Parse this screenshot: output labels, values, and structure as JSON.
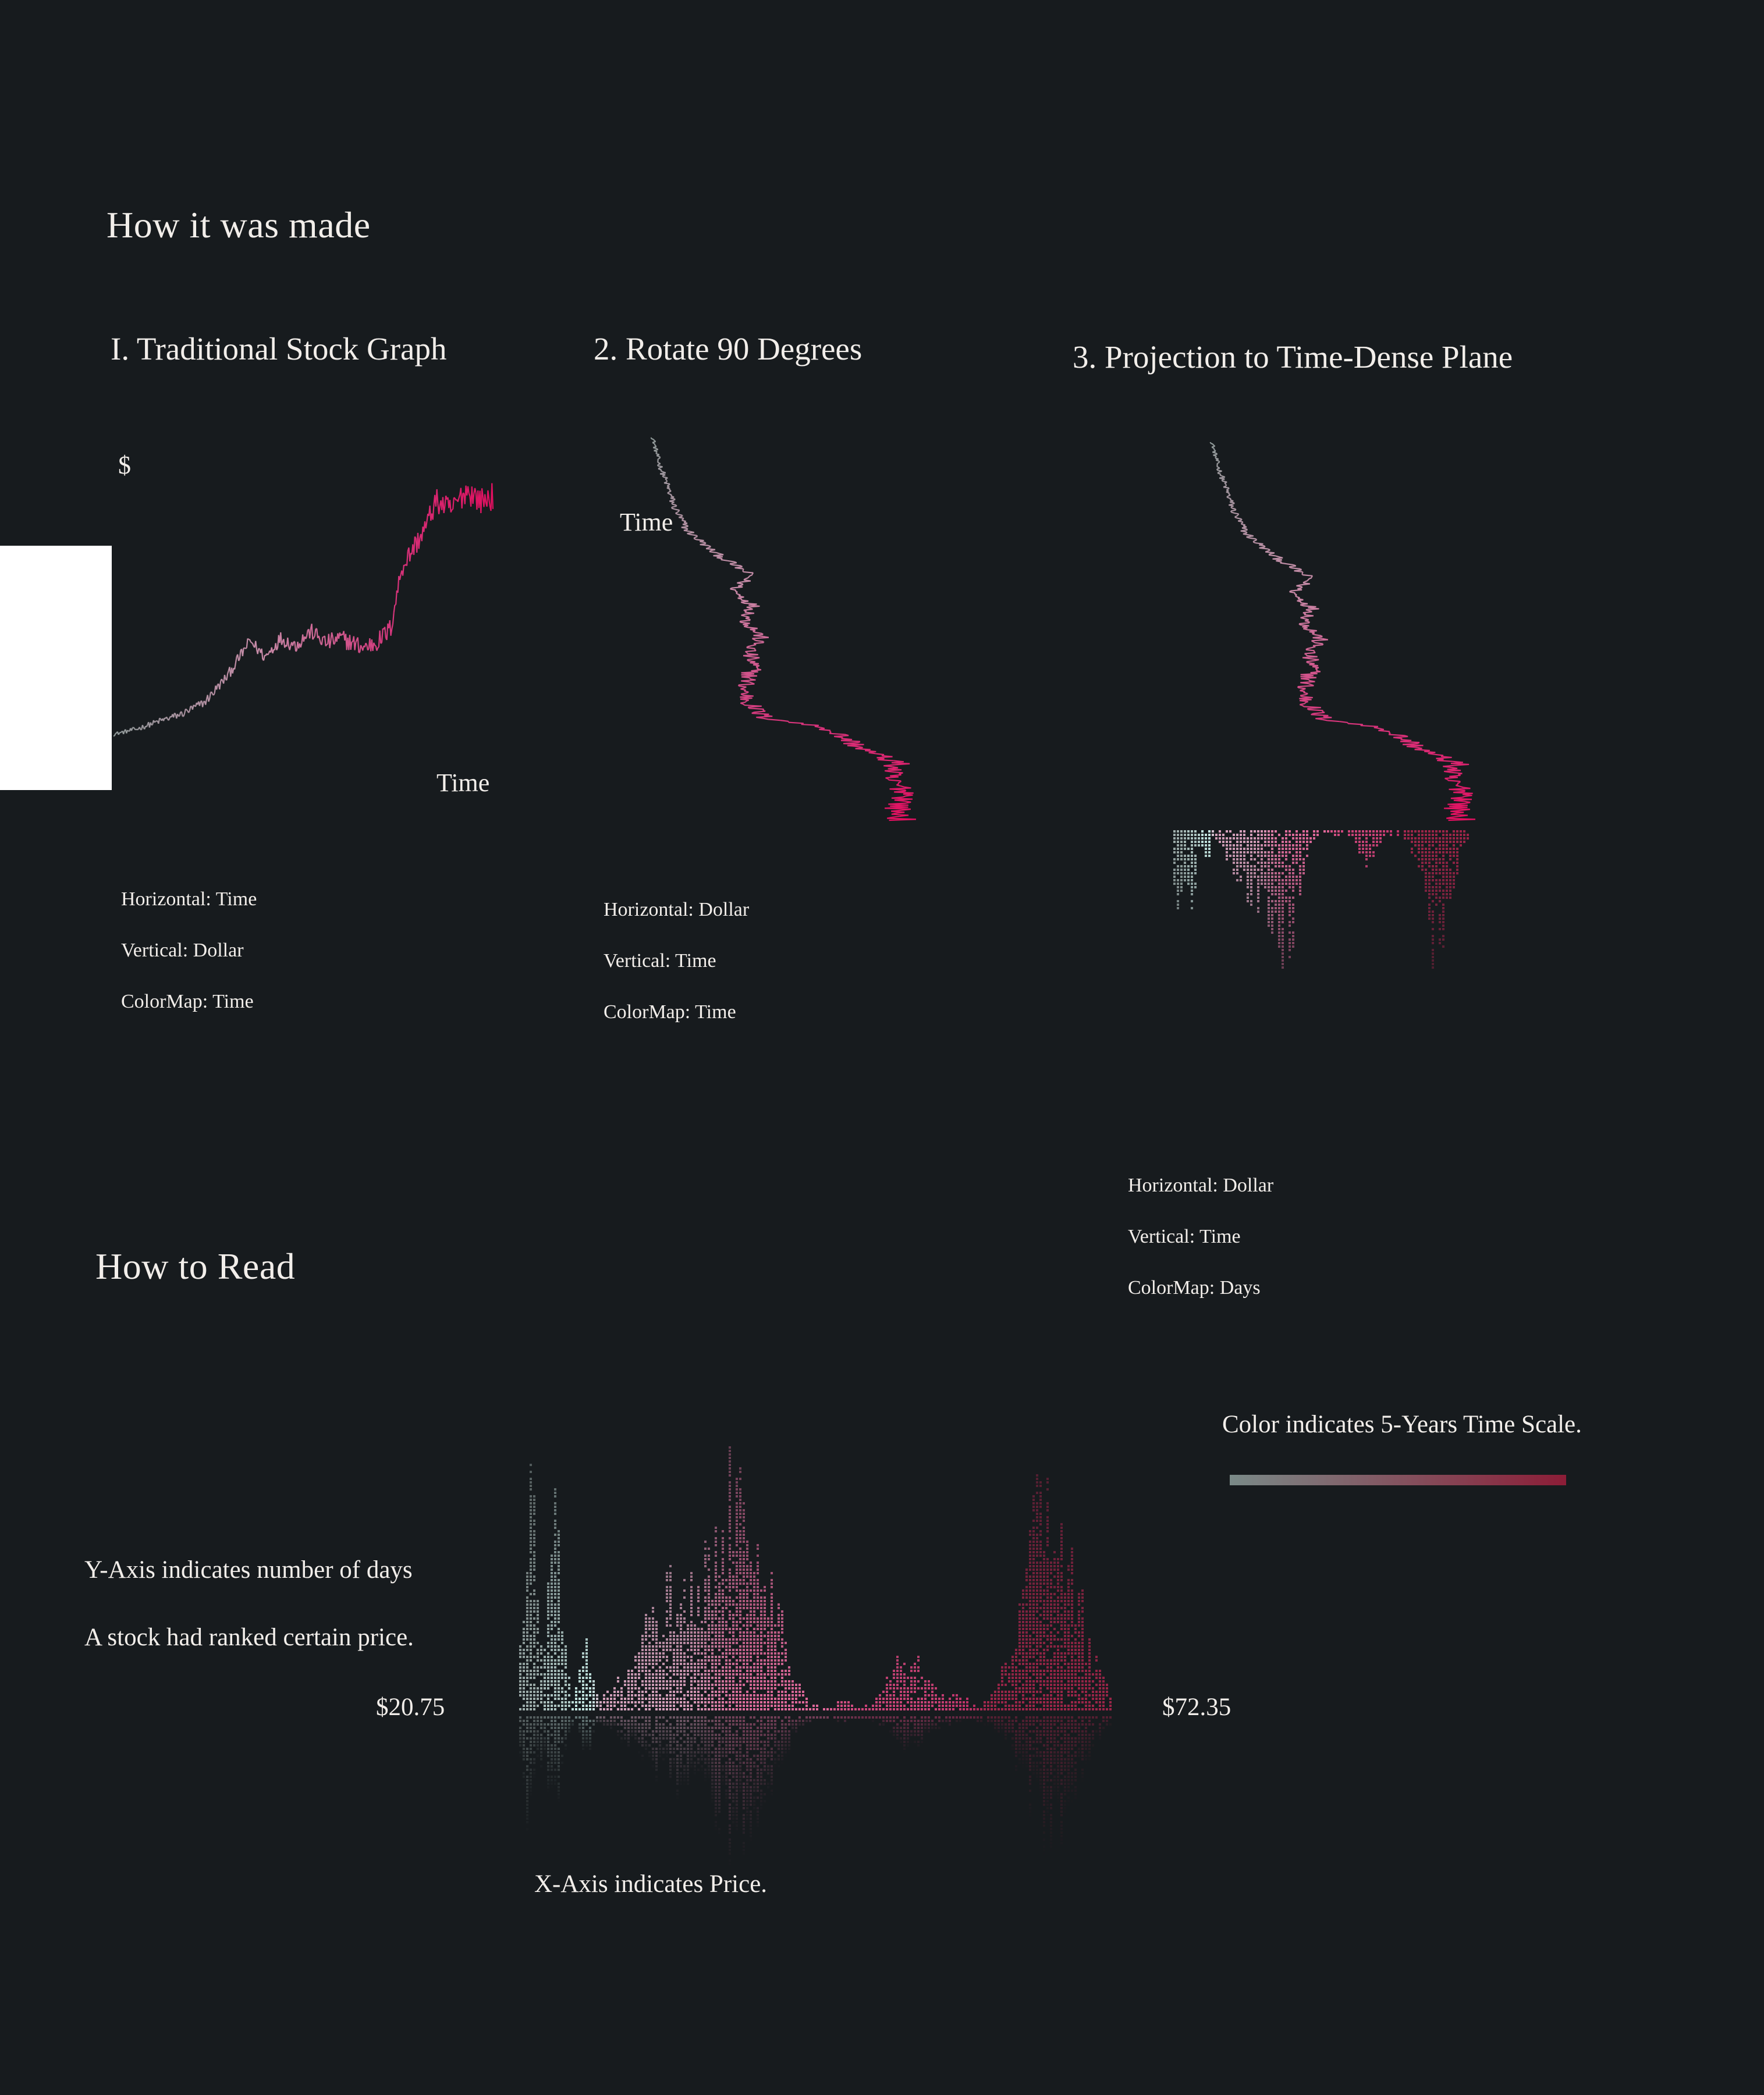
{
  "how_made": {
    "title": "How it was made",
    "panels": [
      {
        "title": "I. Traditional Stock Graph",
        "y_label": "$",
        "x_label": "Time",
        "caption": [
          "Horizontal: Time",
          "Vertical: Dollar",
          "ColorMap: Time"
        ]
      },
      {
        "title": "2. Rotate 90 Degrees",
        "axis_label": "Time",
        "caption": [
          "Horizontal: Dollar",
          "Vertical: Time",
          "ColorMap: Time"
        ]
      },
      {
        "title": "3. Projection to Time-Dense Plane",
        "caption": [
          "Horizontal: Dollar",
          "Vertical: Time",
          "ColorMap: Days"
        ]
      }
    ]
  },
  "how_read": {
    "title": "How to Read",
    "y_axis_note": [
      "Y-Axis indicates number of days",
      "A stock had ranked certain price."
    ],
    "x_axis_note": "X-Axis indicates Price.",
    "price_min_label": "$20.75",
    "price_max_label": "$72.35",
    "color_note": "Color indicates 5-Years Time Scale."
  },
  "colors": {
    "background": "#171b1e",
    "text": "#f2eeea",
    "early": "#c9ede8",
    "mid": "#e0689a",
    "late": "#8c1f3a",
    "gradient_start": "#7a8a88",
    "gradient_end": "#8c1d37"
  },
  "price_series_control_points": [
    [
      0,
      20.75
    ],
    [
      0.06,
      21.8
    ],
    [
      0.12,
      23.5
    ],
    [
      0.18,
      25.0
    ],
    [
      0.24,
      27.5
    ],
    [
      0.3,
      33.0
    ],
    [
      0.36,
      40.5
    ],
    [
      0.4,
      37.0
    ],
    [
      0.44,
      41.0
    ],
    [
      0.48,
      39.5
    ],
    [
      0.52,
      42.5
    ],
    [
      0.56,
      40.0
    ],
    [
      0.6,
      41.0
    ],
    [
      0.66,
      39.0
    ],
    [
      0.7,
      40.5
    ],
    [
      0.73,
      43.0
    ],
    [
      0.76,
      56.0
    ],
    [
      0.79,
      60.0
    ],
    [
      0.82,
      64.0
    ],
    [
      0.85,
      70.0
    ],
    [
      0.89,
      68.0
    ],
    [
      0.93,
      72.35
    ],
    [
      0.97,
      70.0
    ],
    [
      1.0,
      71.0
    ]
  ],
  "chart_data": {
    "type": "histogram",
    "x_range": [
      20.75,
      72.35
    ],
    "clusters": [
      {
        "price": 21.6,
        "peak_days": 1.0,
        "width": 0.6,
        "era": 0.02
      },
      {
        "price": 23.8,
        "peak_days": 0.9,
        "width": 0.6,
        "era": 0.07
      },
      {
        "price": 26.4,
        "peak_days": 0.3,
        "width": 0.5,
        "era": 0.12
      },
      {
        "price": 34.5,
        "peak_days": 0.55,
        "width": 3.2,
        "era": 0.32
      },
      {
        "price": 40.5,
        "peak_days": 1.0,
        "width": 2.2,
        "era": 0.45
      },
      {
        "price": 49.0,
        "peak_days": 0.05,
        "width": 0.5,
        "era": 0.6
      },
      {
        "price": 54.5,
        "peak_days": 0.25,
        "width": 1.6,
        "era": 0.66
      },
      {
        "price": 58.5,
        "peak_days": 0.05,
        "width": 1.5,
        "era": 0.72
      },
      {
        "price": 67.0,
        "peak_days": 1.0,
        "width": 2.3,
        "era": 0.92
      }
    ]
  }
}
